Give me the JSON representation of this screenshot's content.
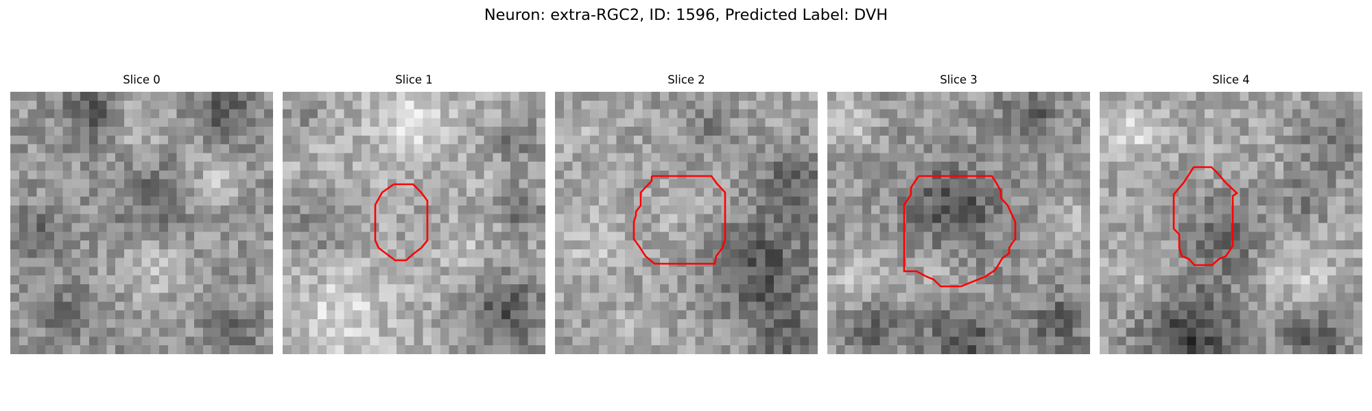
{
  "figure": {
    "title": "Neuron: extra-RGC2, ID: 1596, Predicted Label: DVH"
  },
  "panels": [
    {
      "title": "Slice 0",
      "has_roi_outline": false,
      "roi_color": "#ff0000"
    },
    {
      "title": "Slice 1",
      "has_roi_outline": true,
      "roi_color": "#ff0000"
    },
    {
      "title": "Slice 2",
      "has_roi_outline": true,
      "roi_color": "#ff0000"
    },
    {
      "title": "Slice 3",
      "has_roi_outline": true,
      "roi_color": "#ff0000"
    },
    {
      "title": "Slice 4",
      "has_roi_outline": true,
      "roi_color": "#ff0000"
    }
  ],
  "colormap": "gray"
}
